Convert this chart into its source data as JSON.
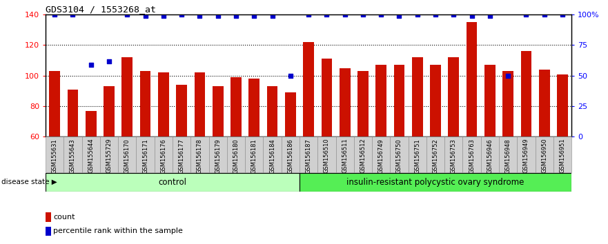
{
  "title": "GDS3104 / 1553268_at",
  "samples": [
    "GSM155631",
    "GSM155643",
    "GSM155644",
    "GSM155729",
    "GSM156170",
    "GSM156171",
    "GSM156176",
    "GSM156177",
    "GSM156178",
    "GSM156179",
    "GSM156180",
    "GSM156181",
    "GSM156184",
    "GSM156186",
    "GSM156187",
    "GSM156510",
    "GSM156511",
    "GSM156512",
    "GSM156749",
    "GSM156750",
    "GSM156751",
    "GSM156752",
    "GSM156753",
    "GSM156763",
    "GSM156946",
    "GSM156948",
    "GSM156949",
    "GSM156950",
    "GSM156951"
  ],
  "bar_values": [
    103,
    91,
    77,
    93,
    112,
    103,
    102,
    94,
    102,
    93,
    99,
    98,
    93,
    89,
    122,
    111,
    105,
    103,
    107,
    107,
    112,
    107,
    112,
    135,
    107,
    103,
    116,
    104,
    101
  ],
  "percentile_values": [
    100,
    100,
    59,
    62,
    101,
    99,
    99,
    101,
    99,
    99,
    99,
    99,
    99,
    50,
    100,
    101,
    101,
    100,
    101,
    99,
    101,
    100,
    101,
    99,
    99,
    50,
    101,
    101,
    100
  ],
  "group_labels": [
    "control",
    "insulin-resistant polycystic ovary syndrome"
  ],
  "control_count": 14,
  "bar_color": "#cc1100",
  "percentile_color": "#0000cc",
  "ylim_left": [
    60,
    140
  ],
  "ylim_right": [
    0,
    100
  ],
  "yticks_left": [
    60,
    80,
    100,
    120,
    140
  ],
  "yticks_right": [
    0,
    25,
    50,
    75,
    100
  ],
  "ytick_labels_right": [
    "0",
    "25",
    "50",
    "75",
    "100%"
  ],
  "control_bg": "#bbffbb",
  "disease_bg": "#55ee55"
}
